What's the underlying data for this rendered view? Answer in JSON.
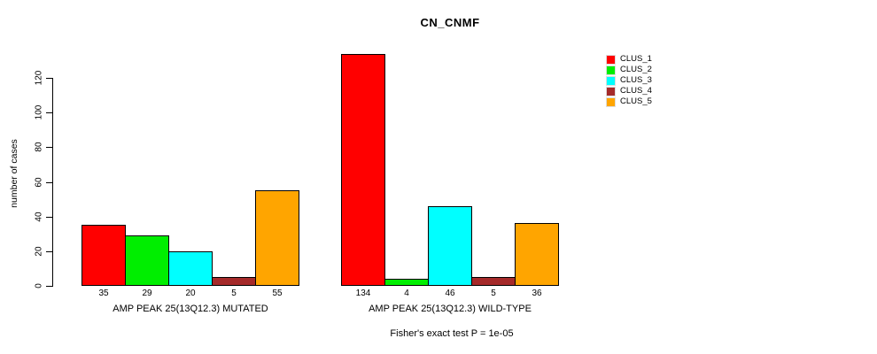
{
  "chart_data": {
    "type": "bar",
    "title": "CN_CNMF",
    "ylabel": "number of cases",
    "caption": "Fisher's exact test P = 1e-05",
    "ylim": [
      0,
      120
    ],
    "yticks": [
      0,
      20,
      40,
      60,
      80,
      100,
      120
    ],
    "grid": false,
    "legend_position": "right",
    "categories": [
      "AMP PEAK 25(13Q12.3) MUTATED",
      "AMP PEAK 25(13Q12.3) WILD-TYPE"
    ],
    "series": [
      {
        "name": "CLUS_1",
        "color": "#FF0000",
        "values": [
          35,
          134
        ]
      },
      {
        "name": "CLUS_2",
        "color": "#00EE00",
        "values": [
          29,
          4
        ]
      },
      {
        "name": "CLUS_3",
        "color": "#00FFFF",
        "values": [
          20,
          46
        ]
      },
      {
        "name": "CLUS_4",
        "color": "#A52A2A",
        "values": [
          5,
          5
        ]
      },
      {
        "name": "CLUS_5",
        "color": "#FFA500",
        "values": [
          55,
          36
        ]
      }
    ]
  }
}
